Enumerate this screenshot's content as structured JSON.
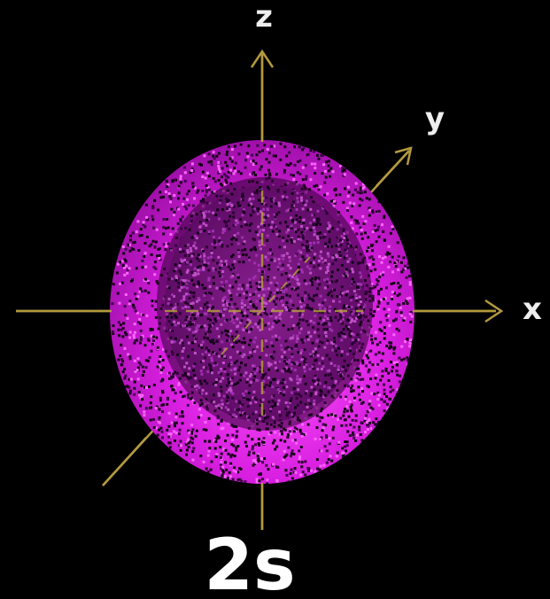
{
  "title": "2s",
  "axes": {
    "x_label": "x",
    "y_label": "y",
    "z_label": "z"
  },
  "colors": {
    "background": "#000000",
    "axis": "#b39a3e",
    "outer_shell": "#e020e6",
    "outer_shell_bright": "#ff44ff",
    "inner_sphere": "#7a1580",
    "node_gap": "#2a002e",
    "label": "#ffffff"
  }
}
